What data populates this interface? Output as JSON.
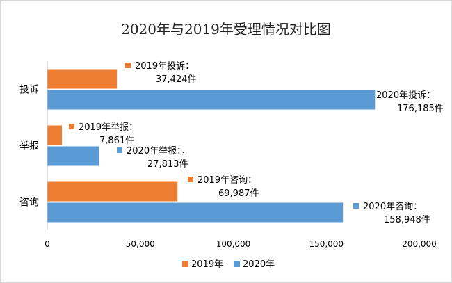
{
  "chart_data": {
    "type": "bar",
    "orientation": "horizontal",
    "title": "2020年与2019年受理情况对比图",
    "categories": [
      "投诉",
      "举报",
      "咨询"
    ],
    "series": [
      {
        "name": "2019年",
        "color": "#ed7d31",
        "values": [
          37424,
          7861,
          69987
        ],
        "labels": [
          [
            "2019年投诉：",
            "37,424件"
          ],
          [
            "2019年举报：",
            "7,861件"
          ],
          [
            "2019年咨询：",
            "69,987件"
          ]
        ]
      },
      {
        "name": "2020年",
        "color": "#5b9bd5",
        "values": [
          176185,
          27813,
          158948
        ],
        "labels": [
          [
            "2020年投诉：",
            "176,185件"
          ],
          [
            "2020年举报：，",
            "27,813件"
          ],
          [
            "2020年咨询：",
            "158,948件"
          ]
        ]
      }
    ],
    "xlim": [
      0,
      200000
    ],
    "xticks": [
      0,
      50000,
      100000,
      150000,
      200000
    ],
    "xtick_labels": [
      "0",
      "50,000",
      "100,000",
      "150,000",
      "200,000"
    ],
    "grid": false,
    "legend": "bottom"
  }
}
